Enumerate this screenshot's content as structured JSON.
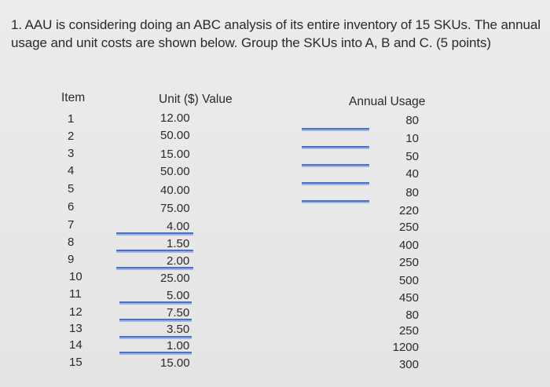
{
  "question": {
    "text": "1. AAU is considering doing an ABC analysis of its entire inventory of 15 SKUs. The annual usage and unit costs are shown below. Group the SKUs into A, B and C.  (5 points)"
  },
  "table": {
    "headers": {
      "item": "Item",
      "unit_value": "Unit ($) Value",
      "annual_usage": "Annual Usage"
    },
    "rows": [
      {
        "item": "1",
        "unit_value": "12.00",
        "annual_usage": "80"
      },
      {
        "item": "2",
        "unit_value": "50.00",
        "annual_usage": "10"
      },
      {
        "item": "3",
        "unit_value": "15.00",
        "annual_usage": "50"
      },
      {
        "item": "4",
        "unit_value": "50.00",
        "annual_usage": "40"
      },
      {
        "item": "5",
        "unit_value": "40.00",
        "annual_usage": "80"
      },
      {
        "item": "6",
        "unit_value": "75.00",
        "annual_usage": "220"
      },
      {
        "item": "7",
        "unit_value": "4.00",
        "annual_usage": "250"
      },
      {
        "item": "8",
        "unit_value": "1.50",
        "annual_usage": "400"
      },
      {
        "item": "9",
        "unit_value": "2.00",
        "annual_usage": "250"
      },
      {
        "item": "10",
        "unit_value": "25.00",
        "annual_usage": "500"
      },
      {
        "item": "11",
        "unit_value": "5.00",
        "annual_usage": "450"
      },
      {
        "item": "12",
        "unit_value": "7.50",
        "annual_usage": "80"
      },
      {
        "item": "13",
        "unit_value": "3.50",
        "annual_usage": "250"
      },
      {
        "item": "14",
        "unit_value": "1.00",
        "annual_usage": "1200"
      },
      {
        "item": "15",
        "unit_value": "15.00",
        "annual_usage": "300"
      }
    ]
  },
  "colors": {
    "highlight_line": "#4d70c6",
    "background": "#e6e6e6",
    "text": "#2a2a2a"
  }
}
